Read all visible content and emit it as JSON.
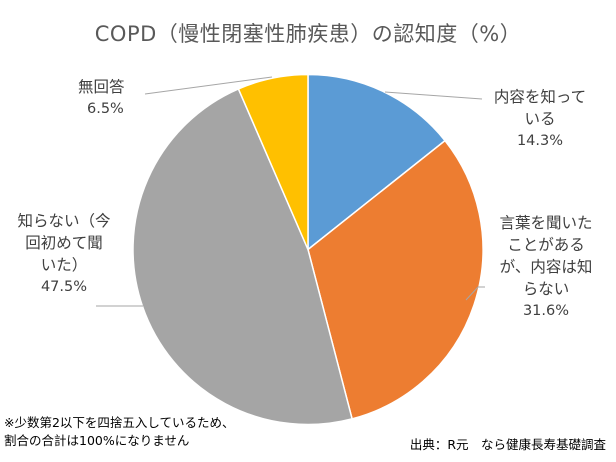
{
  "chart_data": {
    "type": "pie",
    "title": "COPD（慢性閉塞性肺疾患）の認知度（%）",
    "start_angle_deg": 0,
    "direction": "clockwise",
    "slices": [
      {
        "label": "内容を知っている",
        "label_lines": [
          "内容を知って",
          "いる"
        ],
        "value": 14.3,
        "pct_text": "14.3%",
        "color": "#5B9BD5"
      },
      {
        "label": "言葉を聞いたことがあるが、内容は知らない",
        "label_lines": [
          "言葉を聞いた",
          "ことがある",
          "が、内容は知",
          "らない"
        ],
        "value": 31.6,
        "pct_text": "31.6%",
        "color": "#ED7D31"
      },
      {
        "label": "知らない（今回初めて聞いた）",
        "label_lines": [
          "知らない（今",
          "回初めて聞",
          "いた）"
        ],
        "value": 47.5,
        "pct_text": "47.5%",
        "color": "#A5A5A5"
      },
      {
        "label": "無回答",
        "label_lines": [
          "無回答"
        ],
        "value": 6.5,
        "pct_text": "6.5%",
        "color": "#FFC000"
      }
    ]
  },
  "footnote": {
    "line1": "※少数第2以下を四捨五入しているため、",
    "line2": "割合の合計は100%になりません"
  },
  "source": "出典：R元　なら健康長寿基礎調査"
}
